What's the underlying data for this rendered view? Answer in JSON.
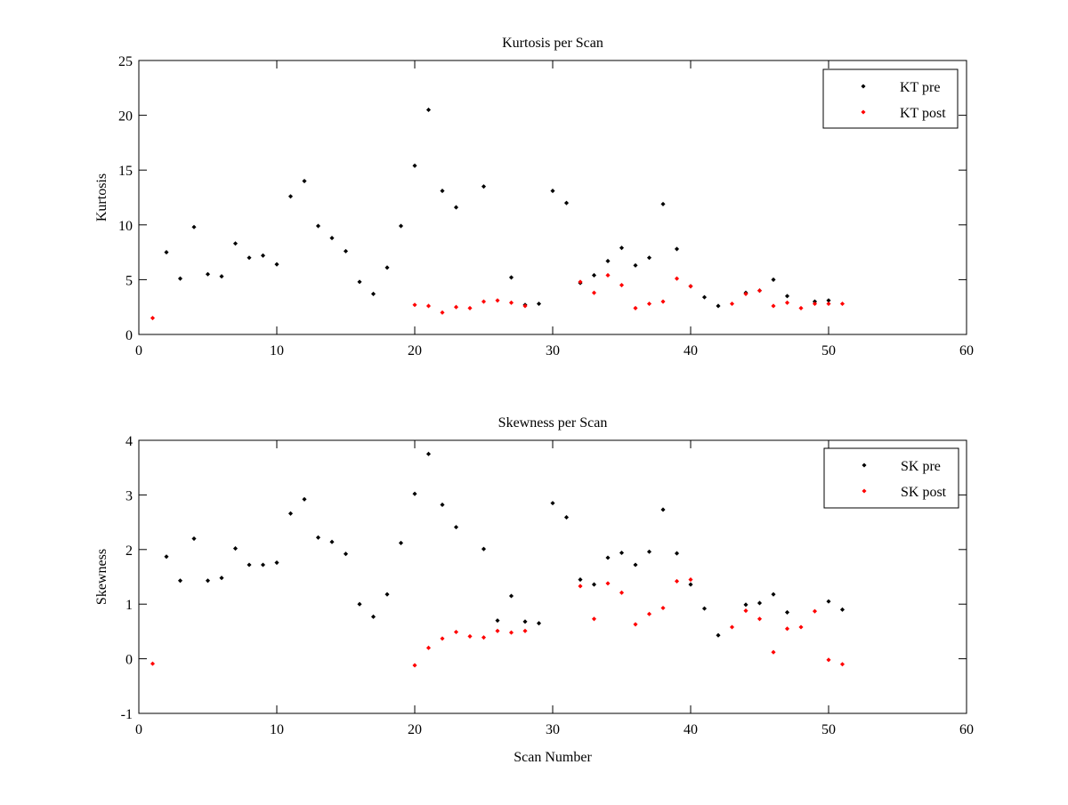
{
  "chart_data": [
    {
      "type": "scatter",
      "title": "Kurtosis per Scan",
      "xlabel": "",
      "ylabel": "Kurtosis",
      "xlim": [
        0,
        60
      ],
      "ylim": [
        0,
        25
      ],
      "xticks": [
        "0",
        "10",
        "20",
        "30",
        "40",
        "50",
        "60"
      ],
      "yticks": [
        "0",
        "5",
        "10",
        "15",
        "20",
        "25"
      ],
      "grid": false,
      "legend_position": "top-right",
      "series": [
        {
          "name": "KT pre",
          "color": "#000000",
          "points": [
            [
              2,
              7.5
            ],
            [
              3,
              5.1
            ],
            [
              4,
              9.8
            ],
            [
              5,
              5.5
            ],
            [
              6,
              5.3
            ],
            [
              7,
              8.3
            ],
            [
              8,
              7.0
            ],
            [
              9,
              7.2
            ],
            [
              10,
              6.4
            ],
            [
              11,
              12.6
            ],
            [
              12,
              14.0
            ],
            [
              13,
              9.9
            ],
            [
              14,
              8.8
            ],
            [
              15,
              7.6
            ],
            [
              16,
              4.8
            ],
            [
              17,
              3.7
            ],
            [
              18,
              6.1
            ],
            [
              19,
              9.9
            ],
            [
              20,
              15.4
            ],
            [
              21,
              20.5
            ],
            [
              22,
              13.1
            ],
            [
              23,
              11.6
            ],
            [
              25,
              13.5
            ],
            [
              27,
              5.2
            ],
            [
              28,
              2.7
            ],
            [
              29,
              2.8
            ],
            [
              30,
              13.1
            ],
            [
              31,
              12.0
            ],
            [
              32,
              4.7
            ],
            [
              33,
              5.4
            ],
            [
              34,
              6.7
            ],
            [
              35,
              7.9
            ],
            [
              36,
              6.3
            ],
            [
              37,
              7.0
            ],
            [
              38,
              11.9
            ],
            [
              39,
              7.8
            ],
            [
              40,
              4.4
            ],
            [
              41,
              3.4
            ],
            [
              42,
              2.6
            ],
            [
              44,
              3.8
            ],
            [
              45,
              4.0
            ],
            [
              46,
              5.0
            ],
            [
              47,
              3.5
            ],
            [
              49,
              3.0
            ],
            [
              50,
              3.1
            ]
          ]
        },
        {
          "name": "KT post",
          "color": "#ff0000",
          "points": [
            [
              1,
              1.5
            ],
            [
              20,
              2.7
            ],
            [
              21,
              2.6
            ],
            [
              22,
              2.0
            ],
            [
              23,
              2.5
            ],
            [
              24,
              2.4
            ],
            [
              25,
              3.0
            ],
            [
              26,
              3.1
            ],
            [
              27,
              2.9
            ],
            [
              28,
              2.6
            ],
            [
              32,
              4.8
            ],
            [
              33,
              3.8
            ],
            [
              34,
              5.4
            ],
            [
              35,
              4.5
            ],
            [
              36,
              2.4
            ],
            [
              37,
              2.8
            ],
            [
              38,
              3.0
            ],
            [
              39,
              5.1
            ],
            [
              40,
              4.4
            ],
            [
              43,
              2.8
            ],
            [
              44,
              3.7
            ],
            [
              45,
              4.0
            ],
            [
              46,
              2.6
            ],
            [
              47,
              2.9
            ],
            [
              48,
              2.4
            ],
            [
              49,
              2.8
            ],
            [
              50,
              2.8
            ],
            [
              51,
              2.8
            ]
          ]
        }
      ]
    },
    {
      "type": "scatter",
      "title": "Skewness per Scan",
      "xlabel": "Scan Number",
      "ylabel": "Skewness",
      "xlim": [
        0,
        60
      ],
      "ylim": [
        -1,
        4
      ],
      "xticks": [
        "0",
        "10",
        "20",
        "30",
        "40",
        "50",
        "60"
      ],
      "yticks": [
        "-1",
        "0",
        "1",
        "2",
        "3",
        "4"
      ],
      "grid": false,
      "legend_position": "top-right",
      "series": [
        {
          "name": "SK pre",
          "color": "#000000",
          "points": [
            [
              2,
              1.87
            ],
            [
              3,
              1.43
            ],
            [
              4,
              2.2
            ],
            [
              5,
              1.43
            ],
            [
              6,
              1.48
            ],
            [
              7,
              2.02
            ],
            [
              8,
              1.72
            ],
            [
              9,
              1.72
            ],
            [
              10,
              1.76
            ],
            [
              11,
              2.66
            ],
            [
              12,
              2.92
            ],
            [
              13,
              2.22
            ],
            [
              14,
              2.14
            ],
            [
              15,
              1.92
            ],
            [
              16,
              1.0
            ],
            [
              17,
              0.77
            ],
            [
              18,
              1.18
            ],
            [
              19,
              2.12
            ],
            [
              20,
              3.02
            ],
            [
              21,
              3.75
            ],
            [
              22,
              2.82
            ],
            [
              23,
              2.41
            ],
            [
              25,
              2.01
            ],
            [
              26,
              0.7
            ],
            [
              27,
              1.15
            ],
            [
              28,
              0.68
            ],
            [
              29,
              0.65
            ],
            [
              30,
              2.85
            ],
            [
              31,
              2.59
            ],
            [
              32,
              1.45
            ],
            [
              33,
              1.36
            ],
            [
              34,
              1.85
            ],
            [
              35,
              1.94
            ],
            [
              36,
              1.72
            ],
            [
              37,
              1.96
            ],
            [
              38,
              2.73
            ],
            [
              39,
              1.93
            ],
            [
              40,
              1.36
            ],
            [
              41,
              0.92
            ],
            [
              42,
              0.43
            ],
            [
              44,
              0.99
            ],
            [
              45,
              1.02
            ],
            [
              46,
              1.18
            ],
            [
              47,
              0.85
            ],
            [
              50,
              1.05
            ],
            [
              51,
              0.9
            ]
          ]
        },
        {
          "name": "SK post",
          "color": "#ff0000",
          "points": [
            [
              1,
              -0.09
            ],
            [
              20,
              -0.12
            ],
            [
              21,
              0.2
            ],
            [
              22,
              0.37
            ],
            [
              23,
              0.49
            ],
            [
              24,
              0.41
            ],
            [
              25,
              0.39
            ],
            [
              26,
              0.51
            ],
            [
              27,
              0.48
            ],
            [
              28,
              0.51
            ],
            [
              32,
              1.33
            ],
            [
              33,
              0.73
            ],
            [
              34,
              1.38
            ],
            [
              35,
              1.21
            ],
            [
              36,
              0.63
            ],
            [
              37,
              0.82
            ],
            [
              38,
              0.93
            ],
            [
              39,
              1.42
            ],
            [
              40,
              1.45
            ],
            [
              43,
              0.58
            ],
            [
              44,
              0.88
            ],
            [
              45,
              0.73
            ],
            [
              46,
              0.12
            ],
            [
              47,
              0.55
            ],
            [
              48,
              0.58
            ],
            [
              49,
              0.87
            ],
            [
              50,
              -0.02
            ],
            [
              51,
              -0.1
            ]
          ]
        }
      ]
    }
  ]
}
